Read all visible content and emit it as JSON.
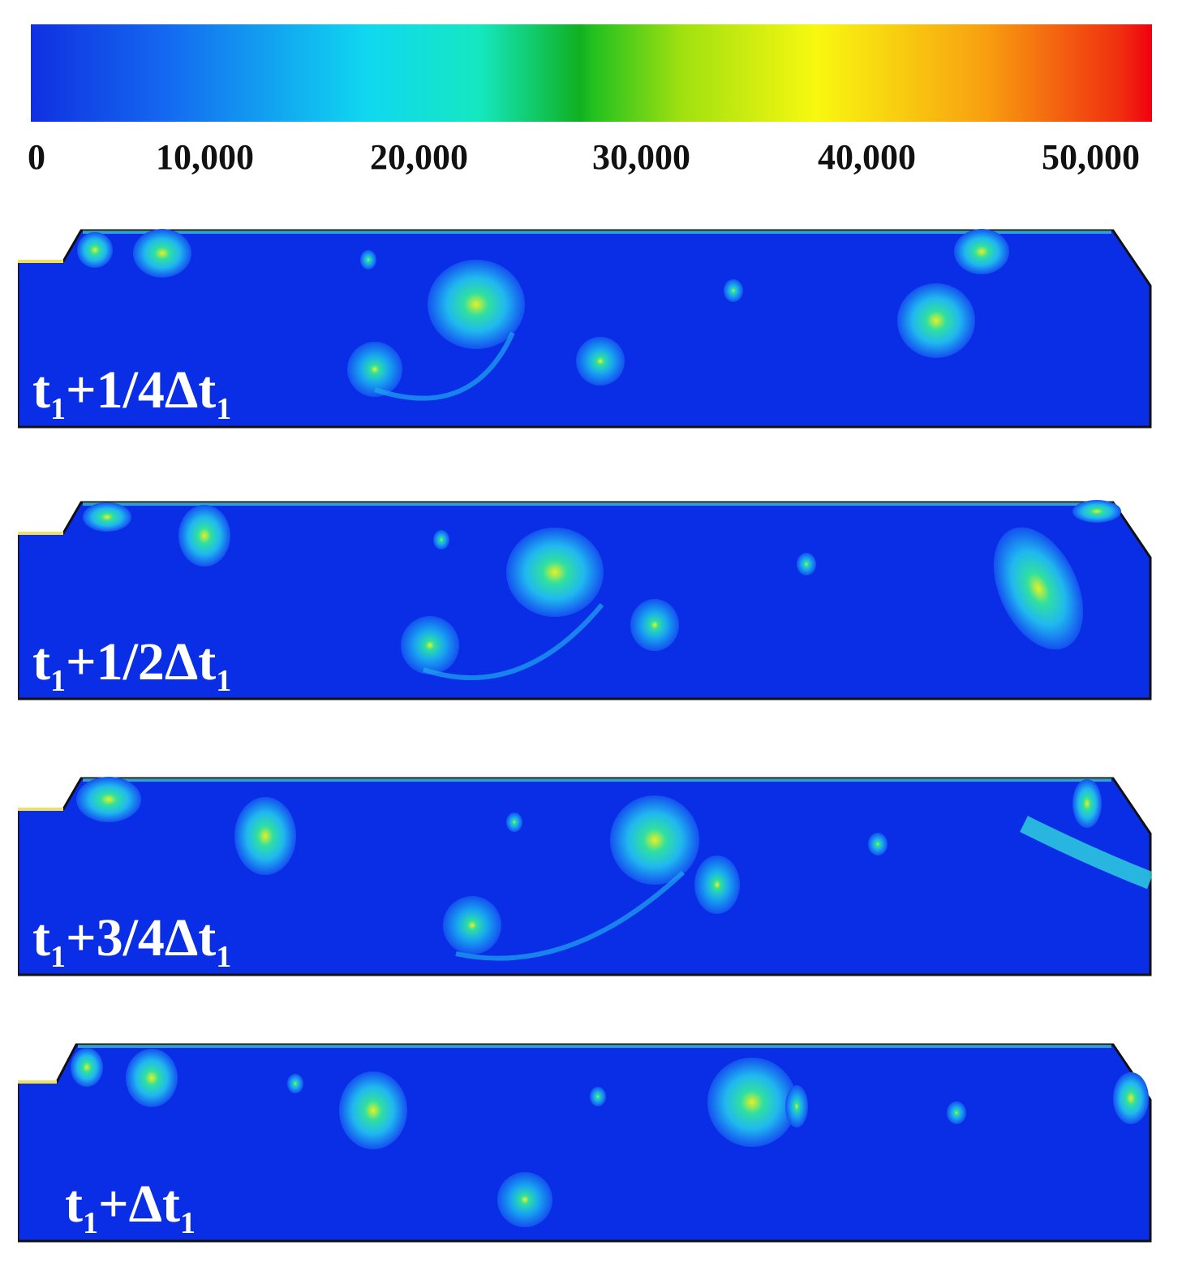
{
  "colorbar": {
    "ticks": [
      "0",
      "10,000",
      "20,000",
      "30,000",
      "40,000",
      "50,000"
    ],
    "colors": [
      "#1030e0",
      "#1468f0",
      "#10c8f0",
      "#14e0d0",
      "#10c020",
      "#a0e010",
      "#f8f810",
      "#f8a010",
      "#f04010",
      "#f00010"
    ]
  },
  "panels": [
    {
      "label_prefix": "t",
      "sub1": "1",
      "label_mid": "+1/4Δt",
      "sub2": "1"
    },
    {
      "label_prefix": "t",
      "sub1": "1",
      "label_mid": "+1/2Δt",
      "sub2": "1"
    },
    {
      "label_prefix": "t",
      "sub1": "1",
      "label_mid": "+3/4Δt",
      "sub2": "1"
    },
    {
      "label_prefix": "t",
      "sub1": "1",
      "label_mid": "+Δt",
      "sub2": "1"
    }
  ],
  "field_color": "#0a2ee6"
}
